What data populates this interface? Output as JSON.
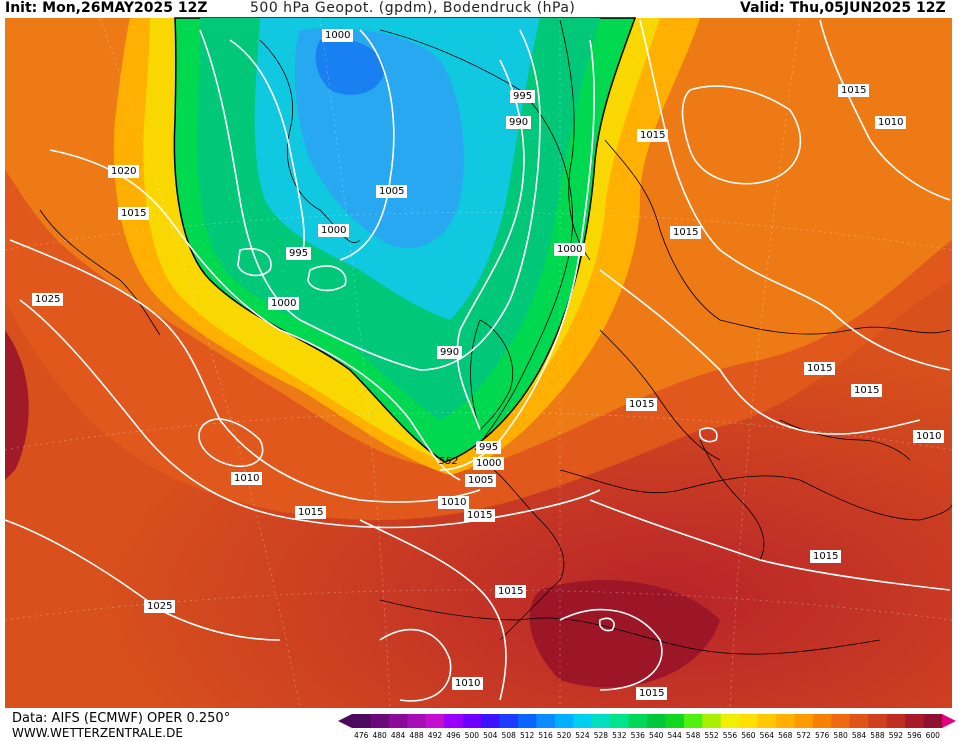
{
  "header": {
    "init": "Init: Mon,26MAY2025 12Z",
    "title": "500 hPa Geopot. (gpdm), Bodendruck (hPa)",
    "valid": "Valid: Thu,05JUN2025 12Z"
  },
  "footer": {
    "model": "Data: AIFS (ECMWF) OPER 0.250°",
    "site": "WWW.WETTERZENTRALE.DE"
  },
  "isobar_labels": [
    {
      "text": "1000",
      "id": "iso-1000-north"
    },
    {
      "text": "995",
      "id": "iso-995-ne"
    },
    {
      "text": "990",
      "id": "iso-990-ne"
    },
    {
      "text": "1015",
      "id": "iso-1015-nw"
    },
    {
      "text": "1010",
      "id": "iso-1010-nw"
    },
    {
      "text": "1020",
      "id": "iso-1020-west"
    },
    {
      "text": "1015",
      "id": "iso-1015-west"
    },
    {
      "text": "1015",
      "id": "iso-1015-scand"
    },
    {
      "text": "1005",
      "id": "iso-1005-center"
    },
    {
      "text": "1000",
      "id": "iso-1000-center"
    },
    {
      "text": "995",
      "id": "iso-995-west"
    },
    {
      "text": "1000",
      "id": "iso-1000-scand"
    },
    {
      "text": "1015",
      "id": "iso-1015-finland"
    },
    {
      "text": "1025",
      "id": "iso-1025-west"
    },
    {
      "text": "1000",
      "id": "iso-1000-atl"
    },
    {
      "text": "990",
      "id": "iso-990-center"
    },
    {
      "text": "1015",
      "id": "iso-1015-russia"
    },
    {
      "text": "1015",
      "id": "iso-1015-east"
    },
    {
      "text": "1015",
      "id": "iso-1015-europe"
    },
    {
      "text": "1010",
      "id": "iso-1010-turkey"
    },
    {
      "text": "995",
      "id": "iso-995-uk"
    },
    {
      "text": "1000",
      "id": "iso-1000-uk"
    },
    {
      "text": "1005",
      "id": "iso-1005-uk"
    },
    {
      "text": "1010",
      "id": "iso-1010-azores"
    },
    {
      "text": "1015",
      "id": "iso-1015-atl"
    },
    {
      "text": "1010",
      "id": "iso-1010-iberia"
    },
    {
      "text": "1015",
      "id": "iso-1015-iberia"
    },
    {
      "text": "1015",
      "id": "iso-1015-med"
    },
    {
      "text": "1025",
      "id": "iso-1025-sw"
    },
    {
      "text": "1015",
      "id": "iso-1015-africa"
    },
    {
      "text": "1010",
      "id": "iso-1010-sahara"
    },
    {
      "text": "1015",
      "id": "iso-1015-south"
    }
  ],
  "contour_label": {
    "text": "552"
  },
  "legend": {
    "values": [
      "476",
      "480",
      "484",
      "488",
      "492",
      "496",
      "500",
      "504",
      "508",
      "512",
      "516",
      "520",
      "524",
      "528",
      "532",
      "536",
      "540",
      "544",
      "548",
      "552",
      "556",
      "560",
      "564",
      "568",
      "572",
      "576",
      "580",
      "584",
      "588",
      "592",
      "596",
      "600"
    ],
    "colors": [
      "#4b0a5e",
      "#6a0a7a",
      "#8a0b97",
      "#a70db4",
      "#c40ed0",
      "#9b00ff",
      "#6f00ff",
      "#3c12ff",
      "#1c3cff",
      "#0a64ff",
      "#0a8cff",
      "#00b0ff",
      "#00d0f0",
      "#00e0c0",
      "#00e48c",
      "#00d85a",
      "#00c83a",
      "#10d820",
      "#50f010",
      "#a8f000",
      "#f0f000",
      "#ffe000",
      "#ffc800",
      "#ffb000",
      "#ff9a00",
      "#f88000",
      "#ee6a10",
      "#e05418",
      "#d0401c",
      "#c02c20",
      "#a81a28",
      "#901030"
    ]
  },
  "colors": {
    "fill_warm": "#e8701a",
    "fill_hot": "#c83a20",
    "fill_trough": "#00d84a",
    "fill_core": "#18c8f0",
    "isobar": "#ffffff",
    "coast": "#000000"
  }
}
